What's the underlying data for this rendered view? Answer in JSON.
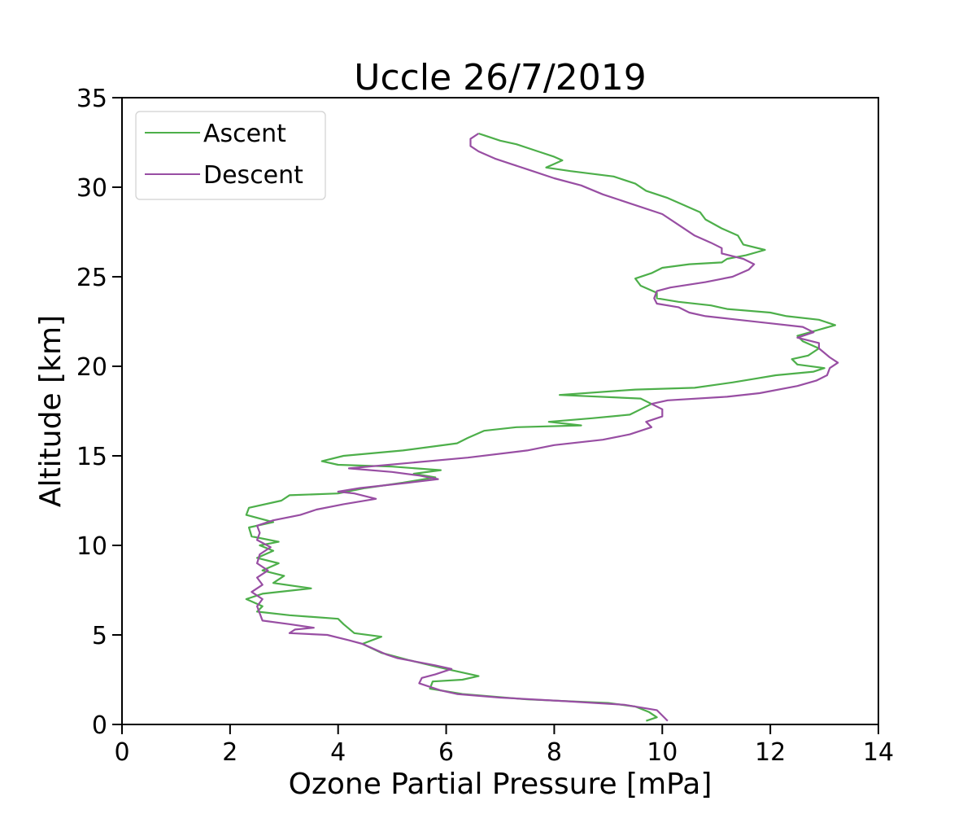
{
  "chart_data": {
    "type": "line",
    "title": "Uccle 26/7/2019",
    "xlabel": "Ozone Partial Pressure [mPa]",
    "ylabel": "Altitude [km]",
    "xlim": [
      0,
      14
    ],
    "ylim": [
      0,
      35
    ],
    "xticks": [
      "0",
      "2",
      "4",
      "6",
      "8",
      "10",
      "12",
      "14"
    ],
    "yticks": [
      "0",
      "5",
      "10",
      "15",
      "20",
      "25",
      "30",
      "35"
    ],
    "grid": false,
    "legend": "top-left",
    "series": [
      {
        "name": "Ascent",
        "color": "#4daf4a",
        "points": [
          [
            9.7,
            0.2
          ],
          [
            9.9,
            0.4
          ],
          [
            9.75,
            0.7
          ],
          [
            9.5,
            1.0
          ],
          [
            9.0,
            1.2
          ],
          [
            7.5,
            1.4
          ],
          [
            6.3,
            1.7
          ],
          [
            5.7,
            2.0
          ],
          [
            5.75,
            2.4
          ],
          [
            6.3,
            2.5
          ],
          [
            6.6,
            2.7
          ],
          [
            6.0,
            3.1
          ],
          [
            5.3,
            3.6
          ],
          [
            4.8,
            4.0
          ],
          [
            4.45,
            4.5
          ],
          [
            4.8,
            4.9
          ],
          [
            4.3,
            5.1
          ],
          [
            4.1,
            5.6
          ],
          [
            4.0,
            5.9
          ],
          [
            3.1,
            6.1
          ],
          [
            2.5,
            6.3
          ],
          [
            2.6,
            6.6
          ],
          [
            2.3,
            7.0
          ],
          [
            2.6,
            7.3
          ],
          [
            3.5,
            7.6
          ],
          [
            2.8,
            7.9
          ],
          [
            3.0,
            8.3
          ],
          [
            2.6,
            8.6
          ],
          [
            2.9,
            9.0
          ],
          [
            2.5,
            9.3
          ],
          [
            2.8,
            9.7
          ],
          [
            2.55,
            10.0
          ],
          [
            2.9,
            10.2
          ],
          [
            2.4,
            10.5
          ],
          [
            2.35,
            11.0
          ],
          [
            2.8,
            11.3
          ],
          [
            2.3,
            11.7
          ],
          [
            2.35,
            12.1
          ],
          [
            2.95,
            12.5
          ],
          [
            3.1,
            12.8
          ],
          [
            4.0,
            12.9
          ],
          [
            4.5,
            13.2
          ],
          [
            5.2,
            13.5
          ],
          [
            5.8,
            13.8
          ],
          [
            5.4,
            14.0
          ],
          [
            5.9,
            14.2
          ],
          [
            5.0,
            14.4
          ],
          [
            4.0,
            14.5
          ],
          [
            3.7,
            14.7
          ],
          [
            4.1,
            15.0
          ],
          [
            5.2,
            15.3
          ],
          [
            6.2,
            15.7
          ],
          [
            6.4,
            16.0
          ],
          [
            6.7,
            16.4
          ],
          [
            7.3,
            16.6
          ],
          [
            8.5,
            16.7
          ],
          [
            7.9,
            16.9
          ],
          [
            8.7,
            17.1
          ],
          [
            9.4,
            17.3
          ],
          [
            9.6,
            17.6
          ],
          [
            9.8,
            17.9
          ],
          [
            9.6,
            18.2
          ],
          [
            8.1,
            18.4
          ],
          [
            9.5,
            18.7
          ],
          [
            10.6,
            18.8
          ],
          [
            11.3,
            19.1
          ],
          [
            11.7,
            19.3
          ],
          [
            12.1,
            19.5
          ],
          [
            12.8,
            19.7
          ],
          [
            13.0,
            19.9
          ],
          [
            12.5,
            20.1
          ],
          [
            12.4,
            20.4
          ],
          [
            12.7,
            20.6
          ],
          [
            12.9,
            21.0
          ],
          [
            12.6,
            21.4
          ],
          [
            12.5,
            21.7
          ],
          [
            12.85,
            22.0
          ],
          [
            13.2,
            22.3
          ],
          [
            12.9,
            22.6
          ],
          [
            12.3,
            22.8
          ],
          [
            12.0,
            23.0
          ],
          [
            11.2,
            23.2
          ],
          [
            10.9,
            23.4
          ],
          [
            10.3,
            23.6
          ],
          [
            9.9,
            23.8
          ],
          [
            9.9,
            24.1
          ],
          [
            9.6,
            24.5
          ],
          [
            9.5,
            24.9
          ],
          [
            9.8,
            25.2
          ],
          [
            10.0,
            25.5
          ],
          [
            10.5,
            25.7
          ],
          [
            11.1,
            25.8
          ],
          [
            11.2,
            26.0
          ],
          [
            11.55,
            26.2
          ],
          [
            11.9,
            26.5
          ],
          [
            11.5,
            26.8
          ],
          [
            11.4,
            27.3
          ],
          [
            11.1,
            27.7
          ],
          [
            10.8,
            28.2
          ],
          [
            10.7,
            28.6
          ],
          [
            10.4,
            29.0
          ],
          [
            10.1,
            29.4
          ],
          [
            9.7,
            29.8
          ],
          [
            9.5,
            30.2
          ],
          [
            9.1,
            30.6
          ],
          [
            8.3,
            30.9
          ],
          [
            7.85,
            31.1
          ],
          [
            8.15,
            31.5
          ],
          [
            8.0,
            31.7
          ],
          [
            7.7,
            32.0
          ],
          [
            7.3,
            32.4
          ],
          [
            7.0,
            32.6
          ],
          [
            6.7,
            32.9
          ],
          [
            6.6,
            33.0
          ]
        ]
      },
      {
        "name": "Descent",
        "color": "#984ea3",
        "points": [
          [
            10.1,
            0.2
          ],
          [
            10.0,
            0.5
          ],
          [
            9.9,
            0.8
          ],
          [
            9.3,
            1.1
          ],
          [
            8.2,
            1.3
          ],
          [
            7.0,
            1.5
          ],
          [
            6.2,
            1.7
          ],
          [
            5.9,
            1.9
          ],
          [
            5.5,
            2.3
          ],
          [
            5.55,
            2.6
          ],
          [
            5.8,
            2.8
          ],
          [
            6.1,
            3.1
          ],
          [
            5.8,
            3.3
          ],
          [
            5.1,
            3.7
          ],
          [
            4.9,
            3.9
          ],
          [
            4.6,
            4.3
          ],
          [
            4.45,
            4.5
          ],
          [
            4.2,
            4.7
          ],
          [
            3.8,
            5.0
          ],
          [
            3.1,
            5.1
          ],
          [
            3.2,
            5.3
          ],
          [
            3.55,
            5.4
          ],
          [
            3.1,
            5.6
          ],
          [
            2.6,
            5.8
          ],
          [
            2.55,
            6.2
          ],
          [
            2.5,
            6.6
          ],
          [
            2.6,
            7.0
          ],
          [
            2.4,
            7.4
          ],
          [
            2.6,
            7.8
          ],
          [
            2.5,
            8.2
          ],
          [
            2.7,
            8.6
          ],
          [
            2.5,
            9.0
          ],
          [
            2.55,
            9.5
          ],
          [
            2.75,
            9.9
          ],
          [
            2.5,
            10.3
          ],
          [
            2.55,
            10.7
          ],
          [
            2.5,
            11.1
          ],
          [
            2.8,
            11.4
          ],
          [
            3.3,
            11.7
          ],
          [
            3.6,
            12.0
          ],
          [
            4.1,
            12.3
          ],
          [
            4.7,
            12.6
          ],
          [
            4.3,
            12.9
          ],
          [
            4.0,
            13.0
          ],
          [
            4.4,
            13.2
          ],
          [
            5.3,
            13.5
          ],
          [
            5.85,
            13.7
          ],
          [
            5.5,
            13.9
          ],
          [
            5.0,
            14.1
          ],
          [
            4.2,
            14.3
          ],
          [
            5.3,
            14.6
          ],
          [
            6.4,
            14.9
          ],
          [
            7.5,
            15.3
          ],
          [
            8.0,
            15.6
          ],
          [
            8.9,
            15.9
          ],
          [
            9.4,
            16.2
          ],
          [
            9.8,
            16.6
          ],
          [
            9.7,
            16.9
          ],
          [
            10.0,
            17.2
          ],
          [
            10.0,
            17.6
          ],
          [
            9.8,
            17.9
          ],
          [
            10.1,
            18.1
          ],
          [
            11.2,
            18.3
          ],
          [
            11.8,
            18.5
          ],
          [
            12.5,
            18.9
          ],
          [
            12.85,
            19.2
          ],
          [
            13.05,
            19.5
          ],
          [
            13.1,
            19.9
          ],
          [
            13.25,
            20.2
          ],
          [
            13.1,
            20.5
          ],
          [
            12.9,
            21.0
          ],
          [
            12.9,
            21.3
          ],
          [
            12.5,
            21.6
          ],
          [
            12.8,
            21.9
          ],
          [
            12.6,
            22.2
          ],
          [
            12.0,
            22.4
          ],
          [
            11.4,
            22.6
          ],
          [
            10.8,
            22.8
          ],
          [
            10.5,
            23.0
          ],
          [
            10.3,
            23.3
          ],
          [
            9.9,
            23.5
          ],
          [
            9.85,
            23.8
          ],
          [
            9.9,
            24.2
          ],
          [
            10.15,
            24.4
          ],
          [
            10.8,
            24.7
          ],
          [
            11.3,
            25.0
          ],
          [
            11.6,
            25.4
          ],
          [
            11.7,
            25.7
          ],
          [
            11.5,
            26.0
          ],
          [
            11.1,
            26.3
          ],
          [
            11.1,
            26.6
          ],
          [
            10.9,
            26.9
          ],
          [
            10.6,
            27.3
          ],
          [
            10.3,
            27.9
          ],
          [
            10.0,
            28.5
          ],
          [
            9.4,
            29.1
          ],
          [
            8.9,
            29.6
          ],
          [
            8.5,
            30.1
          ],
          [
            8.0,
            30.5
          ],
          [
            7.6,
            30.9
          ],
          [
            7.2,
            31.3
          ],
          [
            6.9,
            31.6
          ],
          [
            6.6,
            32.0
          ],
          [
            6.45,
            32.3
          ],
          [
            6.45,
            32.7
          ],
          [
            6.6,
            33.0
          ]
        ]
      }
    ]
  }
}
